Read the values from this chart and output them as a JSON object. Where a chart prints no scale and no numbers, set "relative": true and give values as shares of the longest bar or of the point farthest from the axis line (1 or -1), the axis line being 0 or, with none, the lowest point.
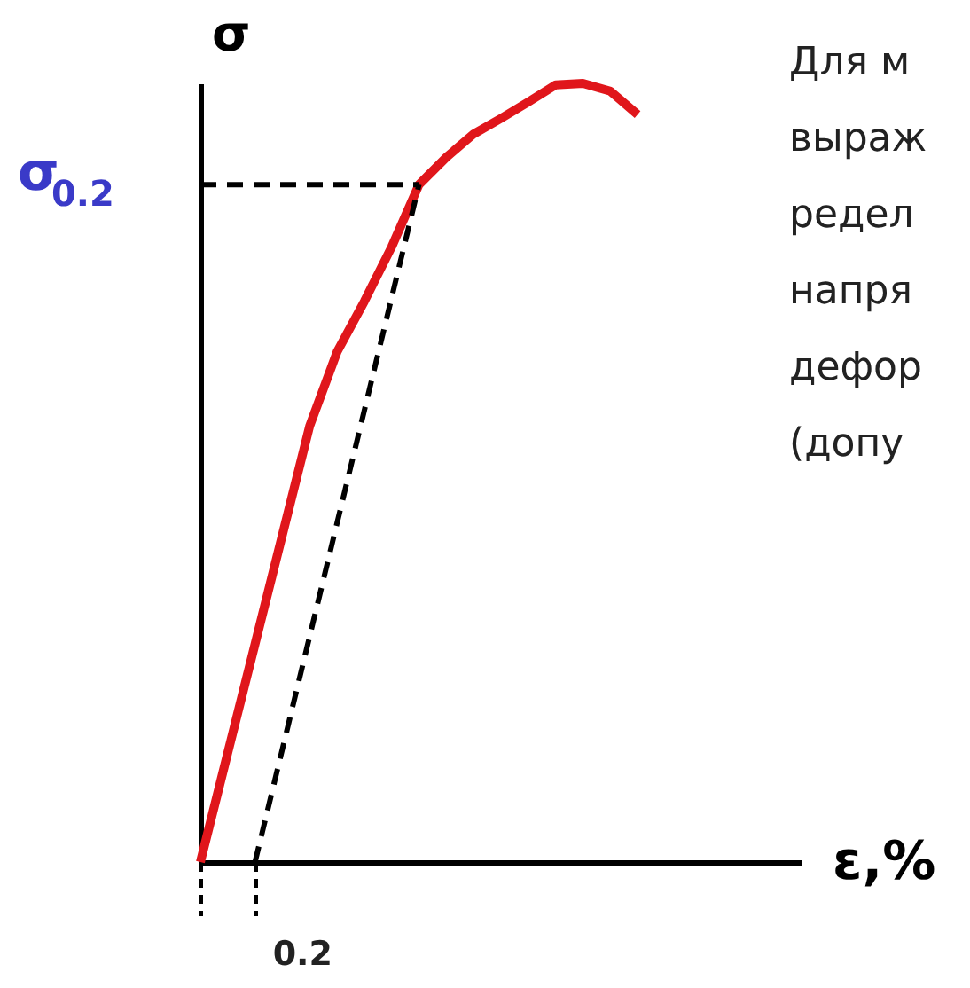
{
  "chart_data": {
    "type": "line",
    "relative": true,
    "xlabel": "ε,%",
    "ylabel": "σ",
    "categories": [
      null,
      null,
      null,
      null,
      null,
      null,
      null,
      null,
      null,
      null,
      null,
      null,
      null,
      null,
      null,
      null,
      null,
      null,
      null,
      null,
      null,
      null,
      null
    ],
    "series": [
      {
        "color": "#e0161b",
        "line_style": "solid",
        "values": [
          0,
          0.14,
          0.28,
          0.42,
          0.56,
          0.655,
          0.72,
          0.79,
          0.87,
          0.905,
          0.935,
          0.955,
          0.976,
          0.998,
          1,
          0.99,
          0.96,
          null,
          null,
          null,
          null,
          null,
          null
        ]
      },
      {
        "color": "#000000",
        "line_style": "dashed",
        "values": [
          null,
          null,
          0,
          0.145,
          0.29,
          0.435,
          0.58,
          0.725,
          0.87,
          null,
          null,
          null,
          null,
          null,
          null,
          null,
          null,
          null,
          null,
          null,
          null,
          null,
          null
        ]
      },
      {
        "color": "#000000",
        "line_style": "dashed",
        "values": [
          0.87,
          0.87,
          0.87,
          0.87,
          0.87,
          0.87,
          0.87,
          0.87,
          0.87,
          null,
          null,
          null,
          null,
          null,
          null,
          null,
          null,
          null,
          null,
          null,
          null,
          null,
          null
        ]
      }
    ],
    "annotations": [
      {
        "text": "σ$_{0.2}$"
      },
      {
        "text": "0.2"
      },
      "Для м",
      "выраж",
      "редел",
      "напря",
      "дефор",
      "(допу"
    ],
    "grid": false
  }
}
